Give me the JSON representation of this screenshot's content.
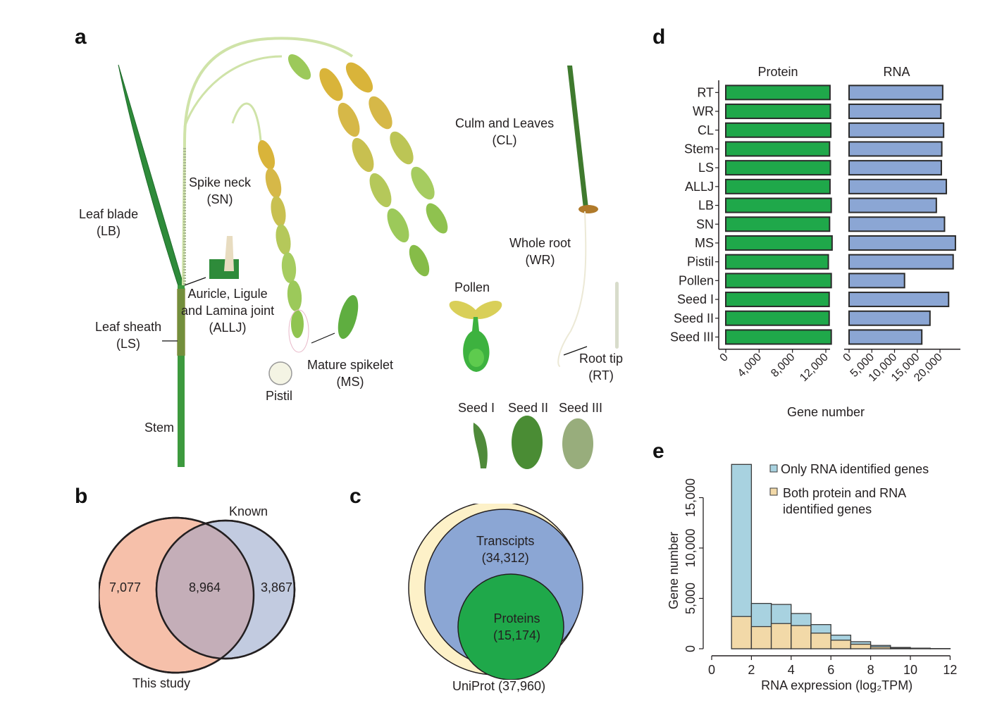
{
  "panels": {
    "a": {
      "letter": "a",
      "labels": {
        "leaf_blade": [
          "Leaf blade",
          "(LB)"
        ],
        "spike_neck": [
          "Spike neck",
          "(SN)"
        ],
        "allj": [
          "Auricle, Ligule",
          "and Lamina joint",
          "(ALLJ)"
        ],
        "leaf_sheath": [
          "Leaf sheath",
          "(LS)"
        ],
        "stem": "Stem",
        "pistil": "Pistil",
        "mature_spikelet": [
          "Mature spikelet",
          "(MS)"
        ],
        "culm_leaves": [
          "Culm and Leaves",
          "(CL)"
        ],
        "whole_root": [
          "Whole root",
          "(WR)"
        ],
        "pollen": "Pollen",
        "root_tip": [
          "Root tip",
          "(RT)"
        ],
        "seed1": "Seed I",
        "seed2": "Seed II",
        "seed3": "Seed III"
      },
      "colors": {
        "leaf": "#2e8b3a",
        "panicle_yellow": "#d9b43a",
        "panicle_green": "#9cc95a",
        "seed_coat": "#b07a2a"
      }
    },
    "b": {
      "letter": "b",
      "venn": {
        "left_label": "This study",
        "right_label": "Known",
        "left_only": "7,077",
        "overlap": "8,964",
        "right_only": "3,867",
        "left_color": "#f6c0aa",
        "right_color": "#c2cbe0",
        "overlap_color": "#c4aeb8"
      }
    },
    "c": {
      "letter": "c",
      "nested": {
        "outer_label": "UniProt (37,960)",
        "middle_label": "Transcipts",
        "middle_value": "(34,312)",
        "inner_label": "Proteins",
        "inner_value": "(15,174)",
        "outer_color": "#fdf1c8",
        "middle_color": "#8ba6d4",
        "inner_color": "#1fa84a"
      }
    },
    "d": {
      "letter": "d"
    },
    "e": {
      "letter": "e"
    }
  },
  "chart_data": [
    {
      "id": "panel-d",
      "type": "bar",
      "orientation": "horizontal",
      "categories": [
        "RT",
        "WR",
        "CL",
        "Stem",
        "LS",
        "ALLJ",
        "LB",
        "SN",
        "MS",
        "Pistil",
        "Pollen",
        "Seed I",
        "Seed II",
        "Seed III"
      ],
      "series": [
        {
          "name": "Protein",
          "color": "#1fa84a",
          "values": [
            12500,
            12550,
            12600,
            12450,
            12550,
            12500,
            12650,
            12450,
            12750,
            12300,
            12650,
            12400,
            12400,
            12650
          ],
          "xlim": [
            0,
            13000
          ],
          "ticks": [
            0,
            4000,
            8000,
            12000
          ],
          "tick_labels": [
            "0",
            "4,000",
            "8,000",
            "12,000"
          ]
        },
        {
          "name": "RNA",
          "color": "#8ba6d4",
          "values": [
            20600,
            20200,
            20800,
            20400,
            20300,
            21400,
            19200,
            21000,
            23400,
            22900,
            12200,
            21900,
            17800,
            16000
          ],
          "xlim": [
            0,
            24500
          ],
          "ticks": [
            0,
            5000,
            10000,
            15000,
            20000
          ],
          "tick_labels": [
            "0",
            "5,000",
            "10,000",
            "15,000",
            "20,000"
          ]
        }
      ],
      "xlabel": "Gene number",
      "ylabel": "",
      "title": "",
      "grid": false,
      "legend": "none"
    },
    {
      "id": "panel-e",
      "type": "bar",
      "subtype": "stacked-histogram",
      "bins": [
        [
          1,
          2
        ],
        [
          2,
          3
        ],
        [
          3,
          4
        ],
        [
          4,
          5
        ],
        [
          5,
          6
        ],
        [
          6,
          7
        ],
        [
          7,
          8
        ],
        [
          8,
          9
        ],
        [
          9,
          10
        ],
        [
          10,
          11
        ],
        [
          11,
          12
        ]
      ],
      "series": [
        {
          "name": "Both protein and RNA identified genes",
          "color": "#f2d9a8",
          "values": [
            3200,
            2200,
            2500,
            2300,
            1550,
            850,
            450,
            180,
            70,
            30,
            10
          ]
        },
        {
          "name": "Only RNA identified genes",
          "color": "#a8d2e0",
          "values": [
            15100,
            2300,
            1900,
            1200,
            850,
            500,
            250,
            150,
            60,
            30,
            10
          ]
        }
      ],
      "totals": [
        18300,
        4500,
        4400,
        3500,
        2400,
        1350,
        700,
        330,
        130,
        60,
        20
      ],
      "legend_entries": [
        "Only RNA identified genes",
        "Both protein and RNA",
        "identified genes"
      ],
      "xlabel": "RNA expression (log₂TPM)",
      "ylabel": "Gene number",
      "xlim": [
        0,
        12
      ],
      "ylim": [
        0,
        15000
      ],
      "xticks": [
        0,
        2,
        4,
        6,
        8,
        10,
        12
      ],
      "yticks": [
        0,
        5000,
        10000,
        15000
      ],
      "ytick_labels": [
        "0",
        "5,000",
        "10,000",
        "15,000"
      ],
      "grid": false,
      "legend": "top-right"
    }
  ]
}
